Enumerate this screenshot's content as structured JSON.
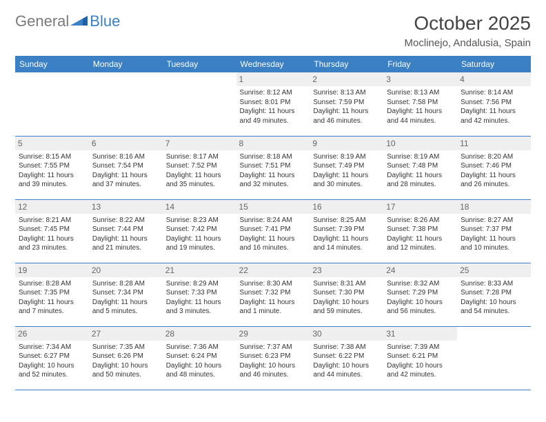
{
  "logo": {
    "part1": "General",
    "part2": "Blue"
  },
  "title": "October 2025",
  "location": "Moclinejo, Andalusia, Spain",
  "colors": {
    "header_bg": "#3b7fc4",
    "header_text": "#ffffff",
    "daynum_bg": "#efefef",
    "daynum_text": "#666666",
    "border": "#3b7fc4",
    "logo_gray": "#7a7a7a",
    "logo_blue": "#3b7fc4"
  },
  "weekdays": [
    "Sunday",
    "Monday",
    "Tuesday",
    "Wednesday",
    "Thursday",
    "Friday",
    "Saturday"
  ],
  "weeks": [
    [
      {
        "day": "",
        "sunrise": "",
        "sunset": "",
        "daylight": ""
      },
      {
        "day": "",
        "sunrise": "",
        "sunset": "",
        "daylight": ""
      },
      {
        "day": "",
        "sunrise": "",
        "sunset": "",
        "daylight": ""
      },
      {
        "day": "1",
        "sunrise": "Sunrise: 8:12 AM",
        "sunset": "Sunset: 8:01 PM",
        "daylight": "Daylight: 11 hours and 49 minutes."
      },
      {
        "day": "2",
        "sunrise": "Sunrise: 8:13 AM",
        "sunset": "Sunset: 7:59 PM",
        "daylight": "Daylight: 11 hours and 46 minutes."
      },
      {
        "day": "3",
        "sunrise": "Sunrise: 8:13 AM",
        "sunset": "Sunset: 7:58 PM",
        "daylight": "Daylight: 11 hours and 44 minutes."
      },
      {
        "day": "4",
        "sunrise": "Sunrise: 8:14 AM",
        "sunset": "Sunset: 7:56 PM",
        "daylight": "Daylight: 11 hours and 42 minutes."
      }
    ],
    [
      {
        "day": "5",
        "sunrise": "Sunrise: 8:15 AM",
        "sunset": "Sunset: 7:55 PM",
        "daylight": "Daylight: 11 hours and 39 minutes."
      },
      {
        "day": "6",
        "sunrise": "Sunrise: 8:16 AM",
        "sunset": "Sunset: 7:54 PM",
        "daylight": "Daylight: 11 hours and 37 minutes."
      },
      {
        "day": "7",
        "sunrise": "Sunrise: 8:17 AM",
        "sunset": "Sunset: 7:52 PM",
        "daylight": "Daylight: 11 hours and 35 minutes."
      },
      {
        "day": "8",
        "sunrise": "Sunrise: 8:18 AM",
        "sunset": "Sunset: 7:51 PM",
        "daylight": "Daylight: 11 hours and 32 minutes."
      },
      {
        "day": "9",
        "sunrise": "Sunrise: 8:19 AM",
        "sunset": "Sunset: 7:49 PM",
        "daylight": "Daylight: 11 hours and 30 minutes."
      },
      {
        "day": "10",
        "sunrise": "Sunrise: 8:19 AM",
        "sunset": "Sunset: 7:48 PM",
        "daylight": "Daylight: 11 hours and 28 minutes."
      },
      {
        "day": "11",
        "sunrise": "Sunrise: 8:20 AM",
        "sunset": "Sunset: 7:46 PM",
        "daylight": "Daylight: 11 hours and 26 minutes."
      }
    ],
    [
      {
        "day": "12",
        "sunrise": "Sunrise: 8:21 AM",
        "sunset": "Sunset: 7:45 PM",
        "daylight": "Daylight: 11 hours and 23 minutes."
      },
      {
        "day": "13",
        "sunrise": "Sunrise: 8:22 AM",
        "sunset": "Sunset: 7:44 PM",
        "daylight": "Daylight: 11 hours and 21 minutes."
      },
      {
        "day": "14",
        "sunrise": "Sunrise: 8:23 AM",
        "sunset": "Sunset: 7:42 PM",
        "daylight": "Daylight: 11 hours and 19 minutes."
      },
      {
        "day": "15",
        "sunrise": "Sunrise: 8:24 AM",
        "sunset": "Sunset: 7:41 PM",
        "daylight": "Daylight: 11 hours and 16 minutes."
      },
      {
        "day": "16",
        "sunrise": "Sunrise: 8:25 AM",
        "sunset": "Sunset: 7:39 PM",
        "daylight": "Daylight: 11 hours and 14 minutes."
      },
      {
        "day": "17",
        "sunrise": "Sunrise: 8:26 AM",
        "sunset": "Sunset: 7:38 PM",
        "daylight": "Daylight: 11 hours and 12 minutes."
      },
      {
        "day": "18",
        "sunrise": "Sunrise: 8:27 AM",
        "sunset": "Sunset: 7:37 PM",
        "daylight": "Daylight: 11 hours and 10 minutes."
      }
    ],
    [
      {
        "day": "19",
        "sunrise": "Sunrise: 8:28 AM",
        "sunset": "Sunset: 7:35 PM",
        "daylight": "Daylight: 11 hours and 7 minutes."
      },
      {
        "day": "20",
        "sunrise": "Sunrise: 8:28 AM",
        "sunset": "Sunset: 7:34 PM",
        "daylight": "Daylight: 11 hours and 5 minutes."
      },
      {
        "day": "21",
        "sunrise": "Sunrise: 8:29 AM",
        "sunset": "Sunset: 7:33 PM",
        "daylight": "Daylight: 11 hours and 3 minutes."
      },
      {
        "day": "22",
        "sunrise": "Sunrise: 8:30 AM",
        "sunset": "Sunset: 7:32 PM",
        "daylight": "Daylight: 11 hours and 1 minute."
      },
      {
        "day": "23",
        "sunrise": "Sunrise: 8:31 AM",
        "sunset": "Sunset: 7:30 PM",
        "daylight": "Daylight: 10 hours and 59 minutes."
      },
      {
        "day": "24",
        "sunrise": "Sunrise: 8:32 AM",
        "sunset": "Sunset: 7:29 PM",
        "daylight": "Daylight: 10 hours and 56 minutes."
      },
      {
        "day": "25",
        "sunrise": "Sunrise: 8:33 AM",
        "sunset": "Sunset: 7:28 PM",
        "daylight": "Daylight: 10 hours and 54 minutes."
      }
    ],
    [
      {
        "day": "26",
        "sunrise": "Sunrise: 7:34 AM",
        "sunset": "Sunset: 6:27 PM",
        "daylight": "Daylight: 10 hours and 52 minutes."
      },
      {
        "day": "27",
        "sunrise": "Sunrise: 7:35 AM",
        "sunset": "Sunset: 6:26 PM",
        "daylight": "Daylight: 10 hours and 50 minutes."
      },
      {
        "day": "28",
        "sunrise": "Sunrise: 7:36 AM",
        "sunset": "Sunset: 6:24 PM",
        "daylight": "Daylight: 10 hours and 48 minutes."
      },
      {
        "day": "29",
        "sunrise": "Sunrise: 7:37 AM",
        "sunset": "Sunset: 6:23 PM",
        "daylight": "Daylight: 10 hours and 46 minutes."
      },
      {
        "day": "30",
        "sunrise": "Sunrise: 7:38 AM",
        "sunset": "Sunset: 6:22 PM",
        "daylight": "Daylight: 10 hours and 44 minutes."
      },
      {
        "day": "31",
        "sunrise": "Sunrise: 7:39 AM",
        "sunset": "Sunset: 6:21 PM",
        "daylight": "Daylight: 10 hours and 42 minutes."
      },
      {
        "day": "",
        "sunrise": "",
        "sunset": "",
        "daylight": ""
      }
    ]
  ]
}
